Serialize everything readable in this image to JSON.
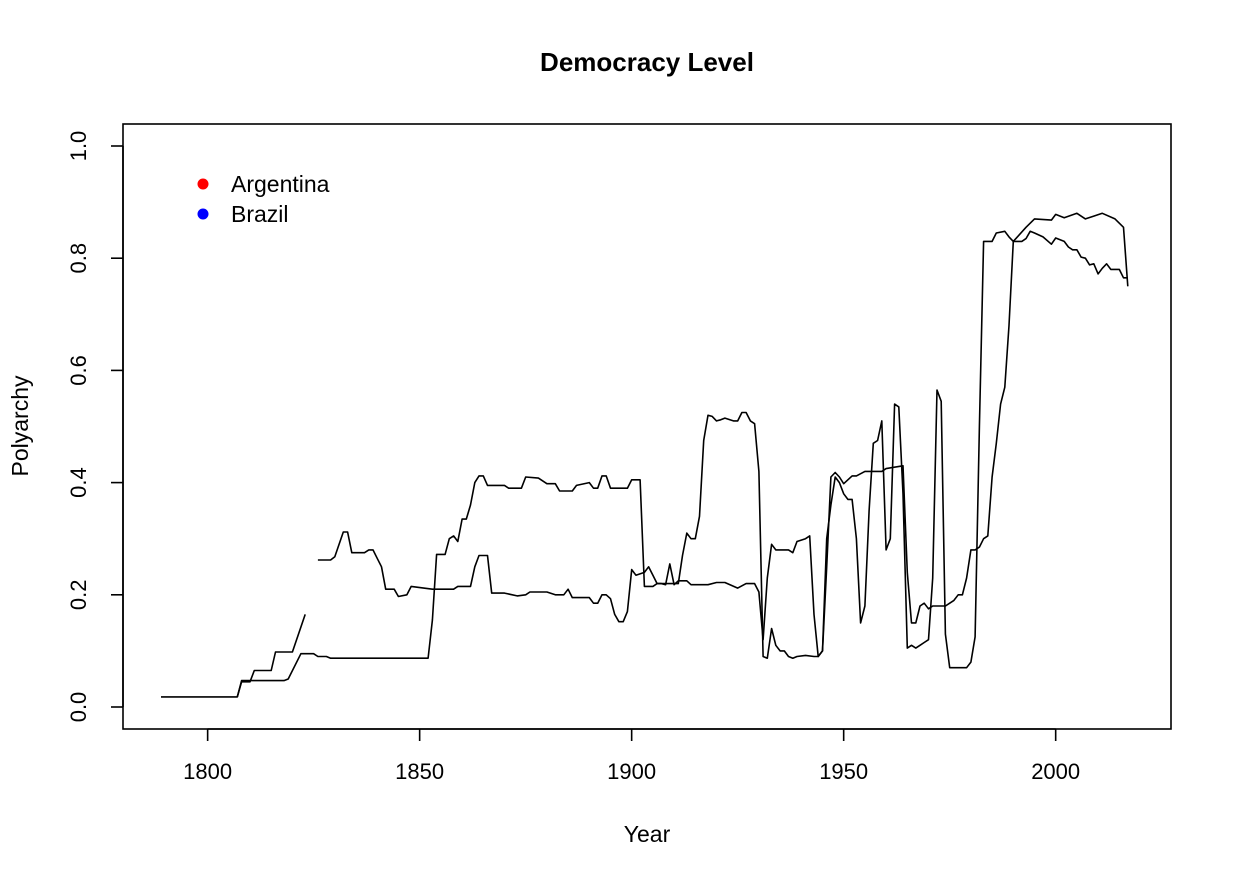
{
  "chart_data": {
    "type": "line",
    "title": "Democracy Level",
    "xlabel": "Year",
    "ylabel": "Polyarchy",
    "xlim": [
      1789,
      2018
    ],
    "ylim": [
      0,
      1
    ],
    "xticks": [
      1800,
      1850,
      1900,
      1950,
      2000
    ],
    "yticks": [
      0.0,
      0.2,
      0.4,
      0.6,
      0.8,
      1.0
    ],
    "ytick_labels": [
      "0.0",
      "0.2",
      "0.4",
      "0.6",
      "0.8",
      "1.0"
    ],
    "grid": false,
    "legend": {
      "placement": "top-left",
      "entries": [
        {
          "name": "Argentina",
          "color": "#ff0000"
        },
        {
          "name": "Brazil",
          "color": "#0000ff"
        }
      ]
    },
    "series": [
      {
        "color": "#000000",
        "segments": [
          [
            [
              1789,
              0.018
            ],
            [
              1799,
              0.018
            ],
            [
              1807,
              0.018
            ],
            [
              1808,
              0.045
            ],
            [
              1810,
              0.045
            ],
            [
              1811,
              0.065
            ],
            [
              1815,
              0.065
            ],
            [
              1816,
              0.098
            ],
            [
              1820,
              0.098
            ],
            [
              1823,
              0.165
            ]
          ],
          [
            [
              1826,
              0.262
            ],
            [
              1829,
              0.262
            ],
            [
              1830,
              0.268
            ],
            [
              1832,
              0.312
            ],
            [
              1833,
              0.312
            ],
            [
              1834,
              0.275
            ],
            [
              1837,
              0.275
            ],
            [
              1838,
              0.28
            ],
            [
              1839,
              0.28
            ],
            [
              1840,
              0.265
            ],
            [
              1841,
              0.25
            ],
            [
              1842,
              0.21
            ],
            [
              1844,
              0.21
            ],
            [
              1845,
              0.197
            ],
            [
              1847,
              0.2
            ],
            [
              1848,
              0.215
            ],
            [
              1853,
              0.21
            ],
            [
              1858,
              0.21
            ],
            [
              1859,
              0.215
            ],
            [
              1862,
              0.215
            ],
            [
              1863,
              0.25
            ],
            [
              1864,
              0.27
            ],
            [
              1866,
              0.27
            ],
            [
              1867,
              0.203
            ],
            [
              1870,
              0.203
            ],
            [
              1873,
              0.198
            ],
            [
              1875,
              0.2
            ],
            [
              1876,
              0.205
            ],
            [
              1880,
              0.205
            ],
            [
              1882,
              0.2
            ],
            [
              1884,
              0.2
            ],
            [
              1885,
              0.21
            ],
            [
              1886,
              0.195
            ],
            [
              1890,
              0.195
            ],
            [
              1891,
              0.185
            ],
            [
              1892,
              0.185
            ],
            [
              1893,
              0.2
            ],
            [
              1894,
              0.2
            ],
            [
              1895,
              0.193
            ],
            [
              1896,
              0.165
            ],
            [
              1897,
              0.152
            ],
            [
              1898,
              0.152
            ],
            [
              1899,
              0.17
            ],
            [
              1900,
              0.245
            ],
            [
              1901,
              0.235
            ],
            [
              1903,
              0.24
            ],
            [
              1904,
              0.25
            ],
            [
              1905,
              0.235
            ],
            [
              1906,
              0.22
            ],
            [
              1907,
              0.22
            ],
            [
              1908,
              0.218
            ],
            [
              1909,
              0.255
            ],
            [
              1910,
              0.218
            ],
            [
              1911,
              0.225
            ],
            [
              1913,
              0.225
            ],
            [
              1914,
              0.218
            ],
            [
              1918,
              0.218
            ],
            [
              1920,
              0.222
            ],
            [
              1922,
              0.222
            ],
            [
              1925,
              0.212
            ],
            [
              1927,
              0.22
            ],
            [
              1929,
              0.22
            ],
            [
              1930,
              0.205
            ],
            [
              1931,
              0.12
            ],
            [
              1932,
              0.23
            ],
            [
              1933,
              0.29
            ],
            [
              1934,
              0.28
            ],
            [
              1937,
              0.28
            ],
            [
              1938,
              0.275
            ],
            [
              1939,
              0.295
            ],
            [
              1941,
              0.3
            ],
            [
              1942,
              0.305
            ],
            [
              1943,
              0.165
            ],
            [
              1944,
              0.09
            ],
            [
              1945,
              0.1
            ],
            [
              1946,
              0.3
            ],
            [
              1947,
              0.36
            ],
            [
              1948,
              0.41
            ],
            [
              1949,
              0.4
            ],
            [
              1950,
              0.38
            ],
            [
              1951,
              0.37
            ],
            [
              1952,
              0.37
            ],
            [
              1953,
              0.3
            ],
            [
              1954,
              0.15
            ],
            [
              1955,
              0.18
            ],
            [
              1956,
              0.35
            ],
            [
              1957,
              0.47
            ],
            [
              1958,
              0.475
            ],
            [
              1959,
              0.51
            ],
            [
              1960,
              0.28
            ],
            [
              1961,
              0.3
            ],
            [
              1962,
              0.54
            ],
            [
              1963,
              0.535
            ],
            [
              1964,
              0.38
            ],
            [
              1965,
              0.105
            ],
            [
              1966,
              0.11
            ],
            [
              1967,
              0.105
            ],
            [
              1968,
              0.11
            ],
            [
              1969,
              0.115
            ],
            [
              1970,
              0.12
            ],
            [
              1971,
              0.23
            ],
            [
              1972,
              0.565
            ],
            [
              1973,
              0.545
            ],
            [
              1974,
              0.13
            ],
            [
              1975,
              0.07
            ],
            [
              1979,
              0.07
            ],
            [
              1980,
              0.08
            ],
            [
              1981,
              0.125
            ],
            [
              1982,
              0.5
            ],
            [
              1983,
              0.83
            ],
            [
              1985,
              0.83
            ],
            [
              1986,
              0.845
            ],
            [
              1988,
              0.848
            ],
            [
              1989,
              0.838
            ],
            [
              1990,
              0.83
            ],
            [
              1993,
              0.855
            ],
            [
              1995,
              0.87
            ],
            [
              1999,
              0.868
            ],
            [
              2000,
              0.878
            ],
            [
              2002,
              0.872
            ],
            [
              2005,
              0.88
            ],
            [
              2007,
              0.87
            ],
            [
              2009,
              0.875
            ],
            [
              2011,
              0.88
            ],
            [
              2014,
              0.87
            ],
            [
              2016,
              0.855
            ],
            [
              2017,
              0.75
            ]
          ]
        ]
      },
      {
        "color": "#000000",
        "segments": [
          [
            [
              1807,
              0.018
            ],
            [
              1808,
              0.047
            ],
            [
              1818,
              0.047
            ],
            [
              1819,
              0.05
            ],
            [
              1822,
              0.095
            ],
            [
              1825,
              0.095
            ],
            [
              1826,
              0.09
            ],
            [
              1828,
              0.09
            ],
            [
              1829,
              0.087
            ],
            [
              1852,
              0.087
            ],
            [
              1853,
              0.155
            ],
            [
              1854,
              0.272
            ],
            [
              1856,
              0.272
            ],
            [
              1857,
              0.3
            ],
            [
              1858,
              0.305
            ],
            [
              1859,
              0.295
            ],
            [
              1860,
              0.335
            ],
            [
              1861,
              0.335
            ],
            [
              1862,
              0.36
            ],
            [
              1863,
              0.4
            ],
            [
              1864,
              0.412
            ],
            [
              1865,
              0.412
            ],
            [
              1866,
              0.395
            ],
            [
              1870,
              0.395
            ],
            [
              1871,
              0.39
            ],
            [
              1874,
              0.39
            ],
            [
              1875,
              0.41
            ],
            [
              1878,
              0.408
            ],
            [
              1880,
              0.398
            ],
            [
              1882,
              0.398
            ],
            [
              1883,
              0.385
            ],
            [
              1886,
              0.385
            ],
            [
              1887,
              0.395
            ],
            [
              1890,
              0.4
            ],
            [
              1891,
              0.39
            ],
            [
              1892,
              0.39
            ],
            [
              1893,
              0.412
            ],
            [
              1894,
              0.412
            ],
            [
              1895,
              0.39
            ],
            [
              1899,
              0.39
            ],
            [
              1900,
              0.405
            ],
            [
              1902,
              0.405
            ],
            [
              1903,
              0.215
            ],
            [
              1905,
              0.215
            ],
            [
              1906,
              0.22
            ],
            [
              1911,
              0.22
            ],
            [
              1912,
              0.27
            ],
            [
              1913,
              0.31
            ],
            [
              1914,
              0.3
            ],
            [
              1915,
              0.3
            ],
            [
              1916,
              0.34
            ],
            [
              1917,
              0.475
            ],
            [
              1918,
              0.52
            ],
            [
              1919,
              0.518
            ],
            [
              1920,
              0.51
            ],
            [
              1921,
              0.512
            ],
            [
              1922,
              0.515
            ],
            [
              1924,
              0.51
            ],
            [
              1925,
              0.51
            ],
            [
              1926,
              0.525
            ],
            [
              1927,
              0.525
            ],
            [
              1928,
              0.51
            ],
            [
              1929,
              0.505
            ],
            [
              1930,
              0.42
            ],
            [
              1931,
              0.09
            ],
            [
              1932,
              0.087
            ],
            [
              1933,
              0.14
            ],
            [
              1934,
              0.11
            ],
            [
              1935,
              0.1
            ],
            [
              1936,
              0.1
            ],
            [
              1937,
              0.09
            ],
            [
              1938,
              0.087
            ],
            [
              1939,
              0.09
            ],
            [
              1941,
              0.092
            ],
            [
              1943,
              0.09
            ],
            [
              1944,
              0.09
            ],
            [
              1945,
              0.1
            ],
            [
              1946,
              0.25
            ],
            [
              1947,
              0.41
            ],
            [
              1948,
              0.418
            ],
            [
              1949,
              0.41
            ],
            [
              1950,
              0.398
            ],
            [
              1951,
              0.405
            ],
            [
              1952,
              0.412
            ],
            [
              1953,
              0.412
            ],
            [
              1955,
              0.42
            ],
            [
              1959,
              0.42
            ],
            [
              1960,
              0.425
            ],
            [
              1964,
              0.43
            ],
            [
              1965,
              0.24
            ],
            [
              1966,
              0.15
            ],
            [
              1967,
              0.15
            ],
            [
              1968,
              0.18
            ],
            [
              1969,
              0.185
            ],
            [
              1970,
              0.175
            ],
            [
              1971,
              0.18
            ],
            [
              1972,
              0.18
            ],
            [
              1974,
              0.18
            ],
            [
              1975,
              0.185
            ],
            [
              1976,
              0.19
            ],
            [
              1977,
              0.2
            ],
            [
              1978,
              0.2
            ],
            [
              1979,
              0.23
            ],
            [
              1980,
              0.28
            ],
            [
              1981,
              0.28
            ],
            [
              1982,
              0.285
            ],
            [
              1983,
              0.3
            ],
            [
              1984,
              0.305
            ],
            [
              1985,
              0.41
            ],
            [
              1986,
              0.47
            ],
            [
              1987,
              0.54
            ],
            [
              1988,
              0.57
            ],
            [
              1989,
              0.68
            ],
            [
              1990,
              0.83
            ],
            [
              1992,
              0.83
            ],
            [
              1993,
              0.835
            ],
            [
              1994,
              0.848
            ],
            [
              1995,
              0.845
            ],
            [
              1997,
              0.838
            ],
            [
              1999,
              0.825
            ],
            [
              2000,
              0.836
            ],
            [
              2002,
              0.83
            ],
            [
              2003,
              0.82
            ],
            [
              2004,
              0.815
            ],
            [
              2005,
              0.815
            ],
            [
              2006,
              0.802
            ],
            [
              2007,
              0.8
            ],
            [
              2008,
              0.788
            ],
            [
              2009,
              0.79
            ],
            [
              2010,
              0.772
            ],
            [
              2011,
              0.782
            ],
            [
              2012,
              0.79
            ],
            [
              2013,
              0.78
            ],
            [
              2015,
              0.78
            ],
            [
              2016,
              0.765
            ],
            [
              2017,
              0.765
            ]
          ]
        ]
      }
    ]
  }
}
